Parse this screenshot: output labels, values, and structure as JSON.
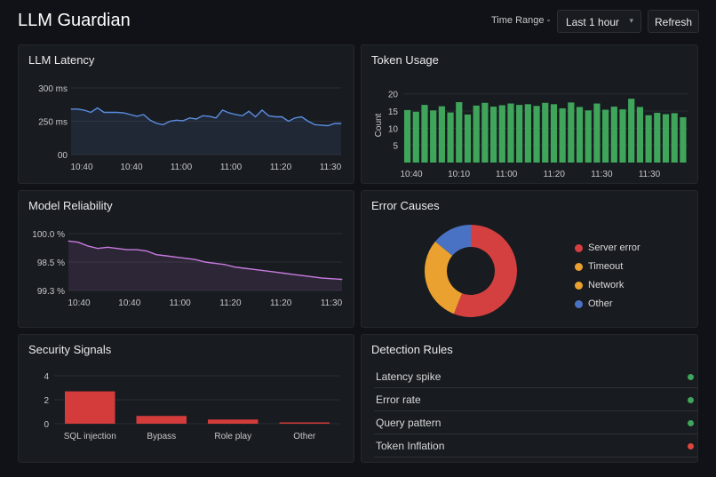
{
  "header": {
    "title": "LLM Guardian",
    "time_range_label": "Time Range -",
    "time_range_value": "Last 1 hour",
    "refresh_label": "Refresh"
  },
  "panels": {
    "latency": {
      "title": "LLM Latency"
    },
    "tokens": {
      "title": "Token Usage"
    },
    "reliability": {
      "title": "Model Reliability"
    },
    "errors": {
      "title": "Error Causes"
    },
    "security": {
      "title": "Security Signals"
    },
    "rules": {
      "title": "Detection Rules"
    }
  },
  "detection_rules": [
    {
      "label": "Latency spike",
      "status_color": "#3fa55b"
    },
    {
      "label": "Error rate",
      "status_color": "#3fa55b"
    },
    {
      "label": "Query pattern",
      "status_color": "#3fa55b"
    },
    {
      "label": "Token Inflation",
      "status_color": "#e0453c"
    }
  ],
  "colors": {
    "latency_line": "#5b8de0",
    "token_bars": "#3fa55b",
    "reliability_line": "#c77be0",
    "security_bars": "#d43b3b",
    "status_ok": "#3fa55b",
    "status_alert": "#e0453c"
  },
  "chart_data": [
    {
      "id": "latency",
      "type": "area",
      "title": "LLM Latency",
      "y_tick_labels": [
        "300 ms",
        "250 ms",
        "00"
      ],
      "x_tick_labels": [
        "10:40",
        "10:40",
        "11:00",
        "11:00",
        "11:20",
        "11:30"
      ],
      "ylim": [
        180,
        300
      ],
      "values": [
        262,
        262,
        260,
        256,
        264,
        256,
        256,
        256,
        255,
        252,
        249,
        252,
        242,
        236,
        234,
        240,
        242,
        241,
        246,
        244,
        250,
        249,
        246,
        260,
        255,
        252,
        250,
        258,
        248,
        260,
        250,
        248,
        248,
        240,
        246,
        248,
        240,
        234,
        233,
        232,
        236,
        236
      ],
      "grid": true
    },
    {
      "id": "tokens",
      "type": "bar",
      "title": "Token Usage",
      "ylabel": "Count",
      "y_tick_labels": [
        "20",
        "15",
        "10",
        "5"
      ],
      "x_tick_labels": [
        "10:40",
        "10:10",
        "11:00",
        "11:20",
        "11:30",
        "11:30"
      ],
      "ylim": [
        0,
        22
      ],
      "values": [
        15.3,
        14.8,
        16.8,
        15.2,
        16.4,
        14.6,
        17.6,
        14.0,
        16.6,
        17.4,
        16.3,
        16.7,
        17.2,
        16.8,
        17.0,
        16.5,
        17.4,
        17.0,
        15.8,
        17.5,
        16.2,
        15.2,
        17.2,
        15.4,
        16.3,
        15.5,
        18.6,
        16.2,
        13.8,
        14.5,
        14.1,
        14.4,
        13.2
      ],
      "grid": true
    },
    {
      "id": "reliability",
      "type": "area",
      "title": "Model Reliability",
      "y_tick_labels": [
        "100.0 %",
        "98.5 %",
        "99.3 %"
      ],
      "x_tick_labels": [
        "10:40",
        "10:40",
        "11:00",
        "11:20",
        "11:20",
        "11:30"
      ],
      "values": [
        100.0,
        99.9,
        99.6,
        99.4,
        99.5,
        99.4,
        99.3,
        99.3,
        99.2,
        98.9,
        98.8,
        98.7,
        98.6,
        98.5,
        98.3,
        98.2,
        98.1,
        97.9,
        97.8,
        97.7,
        97.6,
        97.5,
        97.4,
        97.3,
        97.2,
        97.1,
        97.0,
        96.95,
        96.9
      ],
      "ylim": [
        96.0,
        100.6
      ],
      "grid": true
    },
    {
      "id": "errors",
      "type": "pie",
      "title": "Error Causes",
      "slices": [
        {
          "label": "Server error",
          "value": 56,
          "color": "#d44040"
        },
        {
          "label": "Timeout",
          "value": 30,
          "color": "#eba12f"
        },
        {
          "label": "Network",
          "value": 0,
          "color": "#eba12f"
        },
        {
          "label": "Other",
          "value": 14,
          "color": "#4a72c4"
        }
      ]
    },
    {
      "id": "security",
      "type": "bar",
      "title": "Security Signals",
      "categories": [
        "SQL injection",
        "Bypass",
        "Role play",
        "Other"
      ],
      "values": [
        2.7,
        0.65,
        0.35,
        0.1
      ],
      "y_tick_labels": [
        "4",
        "2",
        "0"
      ],
      "ylim": [
        0,
        4
      ],
      "grid": true
    }
  ]
}
